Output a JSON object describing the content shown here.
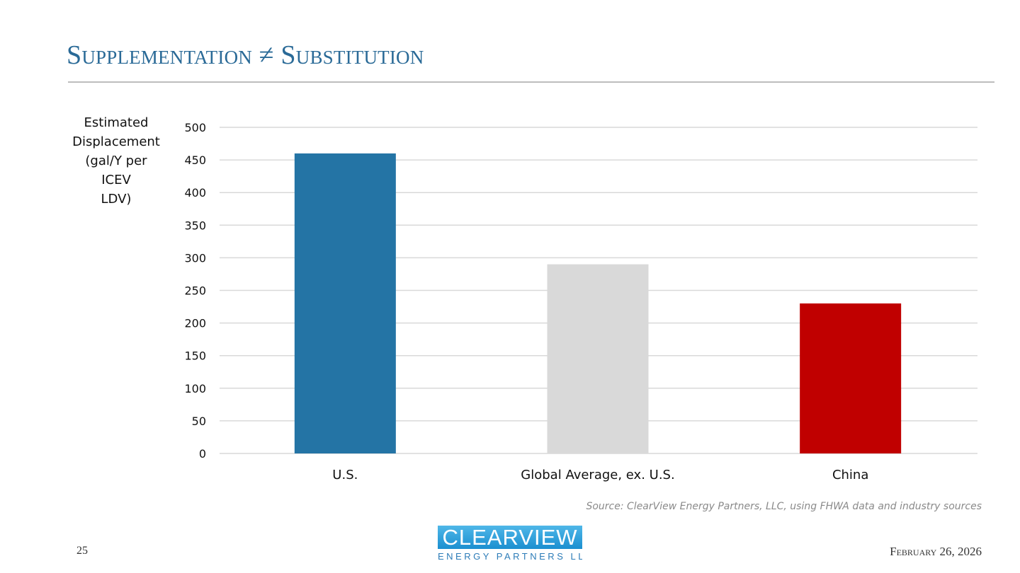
{
  "slide": {
    "title": "Supplementation ≠ Substitution",
    "source": "Source: ClearView Energy Partners, LLC, using FHWA data and industry sources",
    "page_number": "25",
    "date": "February 26, 2026"
  },
  "logo": {
    "top_text": "CLEARVIEW",
    "bottom_text": "ENERGY PARTNERS LLC"
  },
  "chart_data": {
    "type": "bar",
    "categories": [
      "U.S.",
      "Global Average, ex. U.S.",
      "China"
    ],
    "values": [
      460,
      290,
      230
    ],
    "colors": [
      "#2474a5",
      "#d9d9d9",
      "#c00000"
    ],
    "ylabel": "Estimated Displacement (gal/Y per ICEV LDV)",
    "ylabel_lines": [
      "Estimated",
      "Displacement",
      "(gal/Y per",
      "ICEV",
      "LDV)"
    ],
    "ylim": [
      0,
      500
    ],
    "yticks": [
      0,
      50,
      100,
      150,
      200,
      250,
      300,
      350,
      400,
      450,
      500
    ],
    "grid": true,
    "gridline_color": "#d9d9d9"
  }
}
